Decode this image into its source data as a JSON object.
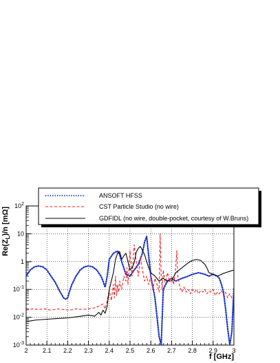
{
  "chart_data": {
    "type": "line",
    "xlabel": "f [GHz]",
    "ylabel": "Re(Z∥)/n [mΩ]",
    "ylabel_parts": [
      "Re(Z",
      "L",
      ")/n [mΩ]"
    ],
    "xlim": [
      2,
      3
    ],
    "ylim": [
      0.001,
      100
    ],
    "y_scale": "log",
    "grid": true,
    "legend_position": "top",
    "x_tick_labels": [
      "2",
      "2.1",
      "2.2",
      "2.3",
      "2.4",
      "2.5",
      "2.6",
      "2.7",
      "2.8",
      "2.9",
      "3"
    ],
    "y_ticks": [
      {
        "value": 0.001,
        "mantissa": "10",
        "exponent": "-3"
      },
      {
        "value": 0.01,
        "mantissa": "10",
        "exponent": "-2"
      },
      {
        "value": 0.1,
        "mantissa": "10",
        "exponent": "-1"
      },
      {
        "value": 1,
        "mantissa": "1",
        "exponent": ""
      },
      {
        "value": 10,
        "mantissa": "10",
        "exponent": ""
      },
      {
        "value": 100,
        "mantissa": "10",
        "exponent": "2"
      }
    ],
    "series": [
      {
        "name": "ANSOFT HFSS",
        "color": "#1a33cc",
        "style": "dotted",
        "x": [
          2.0,
          2.02,
          2.04,
          2.06,
          2.08,
          2.1,
          2.12,
          2.14,
          2.16,
          2.18,
          2.19,
          2.2,
          2.21,
          2.22,
          2.24,
          2.26,
          2.28,
          2.3,
          2.32,
          2.34,
          2.36,
          2.37,
          2.38,
          2.39,
          2.4,
          2.42,
          2.44,
          2.45,
          2.46,
          2.47,
          2.48,
          2.5,
          2.52,
          2.54,
          2.56,
          2.57,
          2.58,
          2.6,
          2.62,
          2.63,
          2.64,
          2.65,
          2.66,
          2.68,
          2.7,
          2.72,
          2.75,
          2.78,
          2.8,
          2.83,
          2.86,
          2.88,
          2.9,
          2.92,
          2.93,
          2.94,
          2.95,
          2.96,
          2.97,
          2.98,
          2.99,
          3.0
        ],
        "y": [
          0.3,
          0.5,
          0.65,
          0.7,
          0.65,
          0.5,
          0.3,
          0.18,
          0.09,
          0.05,
          0.045,
          0.05,
          0.09,
          0.15,
          0.3,
          0.5,
          0.65,
          0.7,
          0.65,
          0.5,
          0.3,
          0.2,
          0.12,
          0.3,
          1.2,
          2.0,
          2.4,
          1.8,
          1.0,
          0.6,
          0.35,
          0.3,
          0.5,
          0.8,
          2.0,
          5.0,
          8.0,
          0.3,
          0.05,
          0.01,
          0.002,
          0.001,
          0.1,
          0.2,
          0.25,
          0.2,
          0.25,
          0.3,
          0.35,
          0.4,
          0.35,
          0.3,
          0.35,
          0.3,
          0.25,
          0.15,
          0.08,
          0.02,
          0.004,
          0.001,
          0.003,
          0.12
        ]
      },
      {
        "name": "CST Particle Studio (no wire)",
        "color": "#ee2222",
        "style": "dashed",
        "x": [
          2.0,
          2.03,
          2.06,
          2.09,
          2.12,
          2.15,
          2.18,
          2.21,
          2.24,
          2.27,
          2.3,
          2.33,
          2.35,
          2.37,
          2.38,
          2.39,
          2.4,
          2.41,
          2.42,
          2.425,
          2.43,
          2.435,
          2.44,
          2.445,
          2.45,
          2.46,
          2.47,
          2.48,
          2.485,
          2.49,
          2.5,
          2.51,
          2.52,
          2.53,
          2.54,
          2.55,
          2.56,
          2.57,
          2.58,
          2.59,
          2.6,
          2.61,
          2.62,
          2.63,
          2.64,
          2.645,
          2.65,
          2.655,
          2.66,
          2.67,
          2.68,
          2.69,
          2.7,
          2.71,
          2.72,
          2.725,
          2.73,
          2.74,
          2.75,
          2.76,
          2.77,
          2.78,
          2.79,
          2.8,
          2.81,
          2.82,
          2.83,
          2.84,
          2.85,
          2.86,
          2.87,
          2.88,
          2.89,
          2.9,
          2.91,
          2.92,
          2.93,
          2.94,
          2.95,
          2.96,
          2.97,
          2.98,
          2.99,
          3.0
        ],
        "y": [
          0.018,
          0.02,
          0.019,
          0.02,
          0.018,
          0.02,
          0.019,
          0.018,
          0.02,
          0.019,
          0.02,
          0.022,
          0.025,
          0.03,
          0.02,
          0.04,
          0.1,
          0.04,
          0.15,
          0.05,
          0.3,
          0.06,
          0.15,
          0.08,
          0.2,
          0.1,
          0.3,
          0.2,
          0.6,
          0.15,
          2.5,
          0.3,
          4.0,
          1.0,
          0.3,
          1.5,
          0.5,
          0.2,
          0.3,
          0.15,
          0.3,
          0.1,
          0.25,
          0.15,
          0.08,
          10.0,
          0.3,
          0.1,
          0.5,
          0.15,
          0.4,
          0.2,
          0.3,
          0.15,
          0.6,
          2.5,
          0.3,
          0.12,
          0.08,
          0.12,
          0.08,
          0.1,
          0.07,
          0.1,
          0.08,
          0.1,
          0.07,
          0.09,
          0.08,
          0.1,
          0.07,
          0.09,
          0.08,
          0.1,
          0.06,
          0.08,
          0.07,
          0.09,
          0.06,
          0.08,
          0.05,
          0.07,
          0.05,
          0.05
        ]
      },
      {
        "name": "GDFIDL (no wire, double-pocket, courtesy of W.Bruns)",
        "color": "#000000",
        "style": "solid",
        "x": [
          2.0,
          2.05,
          2.1,
          2.15,
          2.2,
          2.25,
          2.3,
          2.33,
          2.35,
          2.36,
          2.37,
          2.38,
          2.39,
          2.4,
          2.42,
          2.43,
          2.44,
          2.45,
          2.46,
          2.47,
          2.48,
          2.49,
          2.5,
          2.51,
          2.52,
          2.53,
          2.54,
          2.55,
          2.56,
          2.57,
          2.58,
          2.59,
          2.6,
          2.62,
          2.64,
          2.66,
          2.68,
          2.7,
          2.72,
          2.75,
          2.78,
          2.8,
          2.82,
          2.84,
          2.86,
          2.87,
          2.88,
          2.9,
          2.92,
          2.94,
          2.96,
          2.98,
          3.0
        ],
        "y": [
          0.007,
          0.008,
          0.0085,
          0.009,
          0.0095,
          0.0105,
          0.012,
          0.011,
          0.015,
          0.012,
          0.018,
          0.014,
          0.025,
          0.1,
          0.4,
          1.2,
          2.0,
          2.3,
          1.2,
          1.6,
          2.0,
          1.0,
          0.5,
          0.6,
          0.9,
          2.2,
          3.0,
          3.5,
          2.5,
          1.8,
          1.0,
          0.6,
          0.4,
          0.3,
          0.2,
          0.25,
          0.2,
          0.2,
          0.4,
          0.6,
          0.9,
          1.1,
          1.2,
          1.1,
          0.8,
          0.6,
          0.4,
          0.35,
          0.3,
          0.35,
          0.4,
          0.45,
          0.5
        ]
      }
    ]
  }
}
